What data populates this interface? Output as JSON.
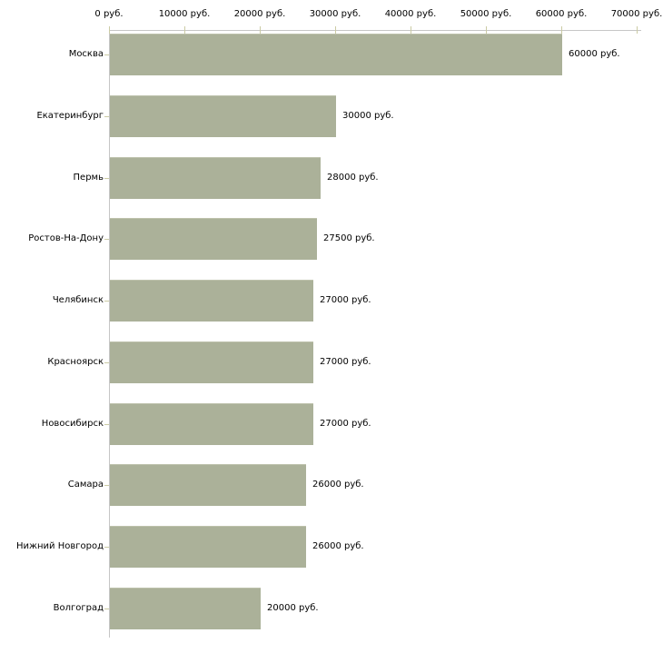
{
  "chart_data": {
    "type": "bar",
    "orientation": "horizontal",
    "title": "",
    "categories": [
      "Москва",
      "Екатеринбург",
      "Пермь",
      "Ростов-На-Дону",
      "Челябинск",
      "Красноярск",
      "Новосибирск",
      "Самара",
      "Нижний Новгород",
      "Волгоград"
    ],
    "values": [
      60000,
      30000,
      28000,
      27500,
      27000,
      27000,
      27000,
      26000,
      26000,
      20000
    ],
    "value_labels": [
      "60000 руб.",
      "30000 руб.",
      "28000 руб.",
      "27500 руб.",
      "27000 руб.",
      "27000 руб.",
      "27000 руб.",
      "26000 руб.",
      "26000 руб.",
      "20000 руб."
    ],
    "x_axis": {
      "position": "top",
      "unit": "руб.",
      "range": [
        0,
        70000
      ],
      "ticks": [
        0,
        10000,
        20000,
        30000,
        40000,
        50000,
        60000,
        70000
      ],
      "tick_labels": [
        "0 руб.",
        "10000 руб.",
        "20000 руб.",
        "30000 руб.",
        "40000 руб.",
        "50000 руб.",
        "60000 руб.",
        "70000 руб."
      ]
    },
    "grid": false,
    "legend": false,
    "colors": {
      "bar": "#abb199",
      "bar_top_edge": "#bdc1ab",
      "axis_line": "#c6c6c6",
      "tick_mark": "#cbcba4",
      "text": "#000000",
      "background": "#ffffff"
    }
  }
}
